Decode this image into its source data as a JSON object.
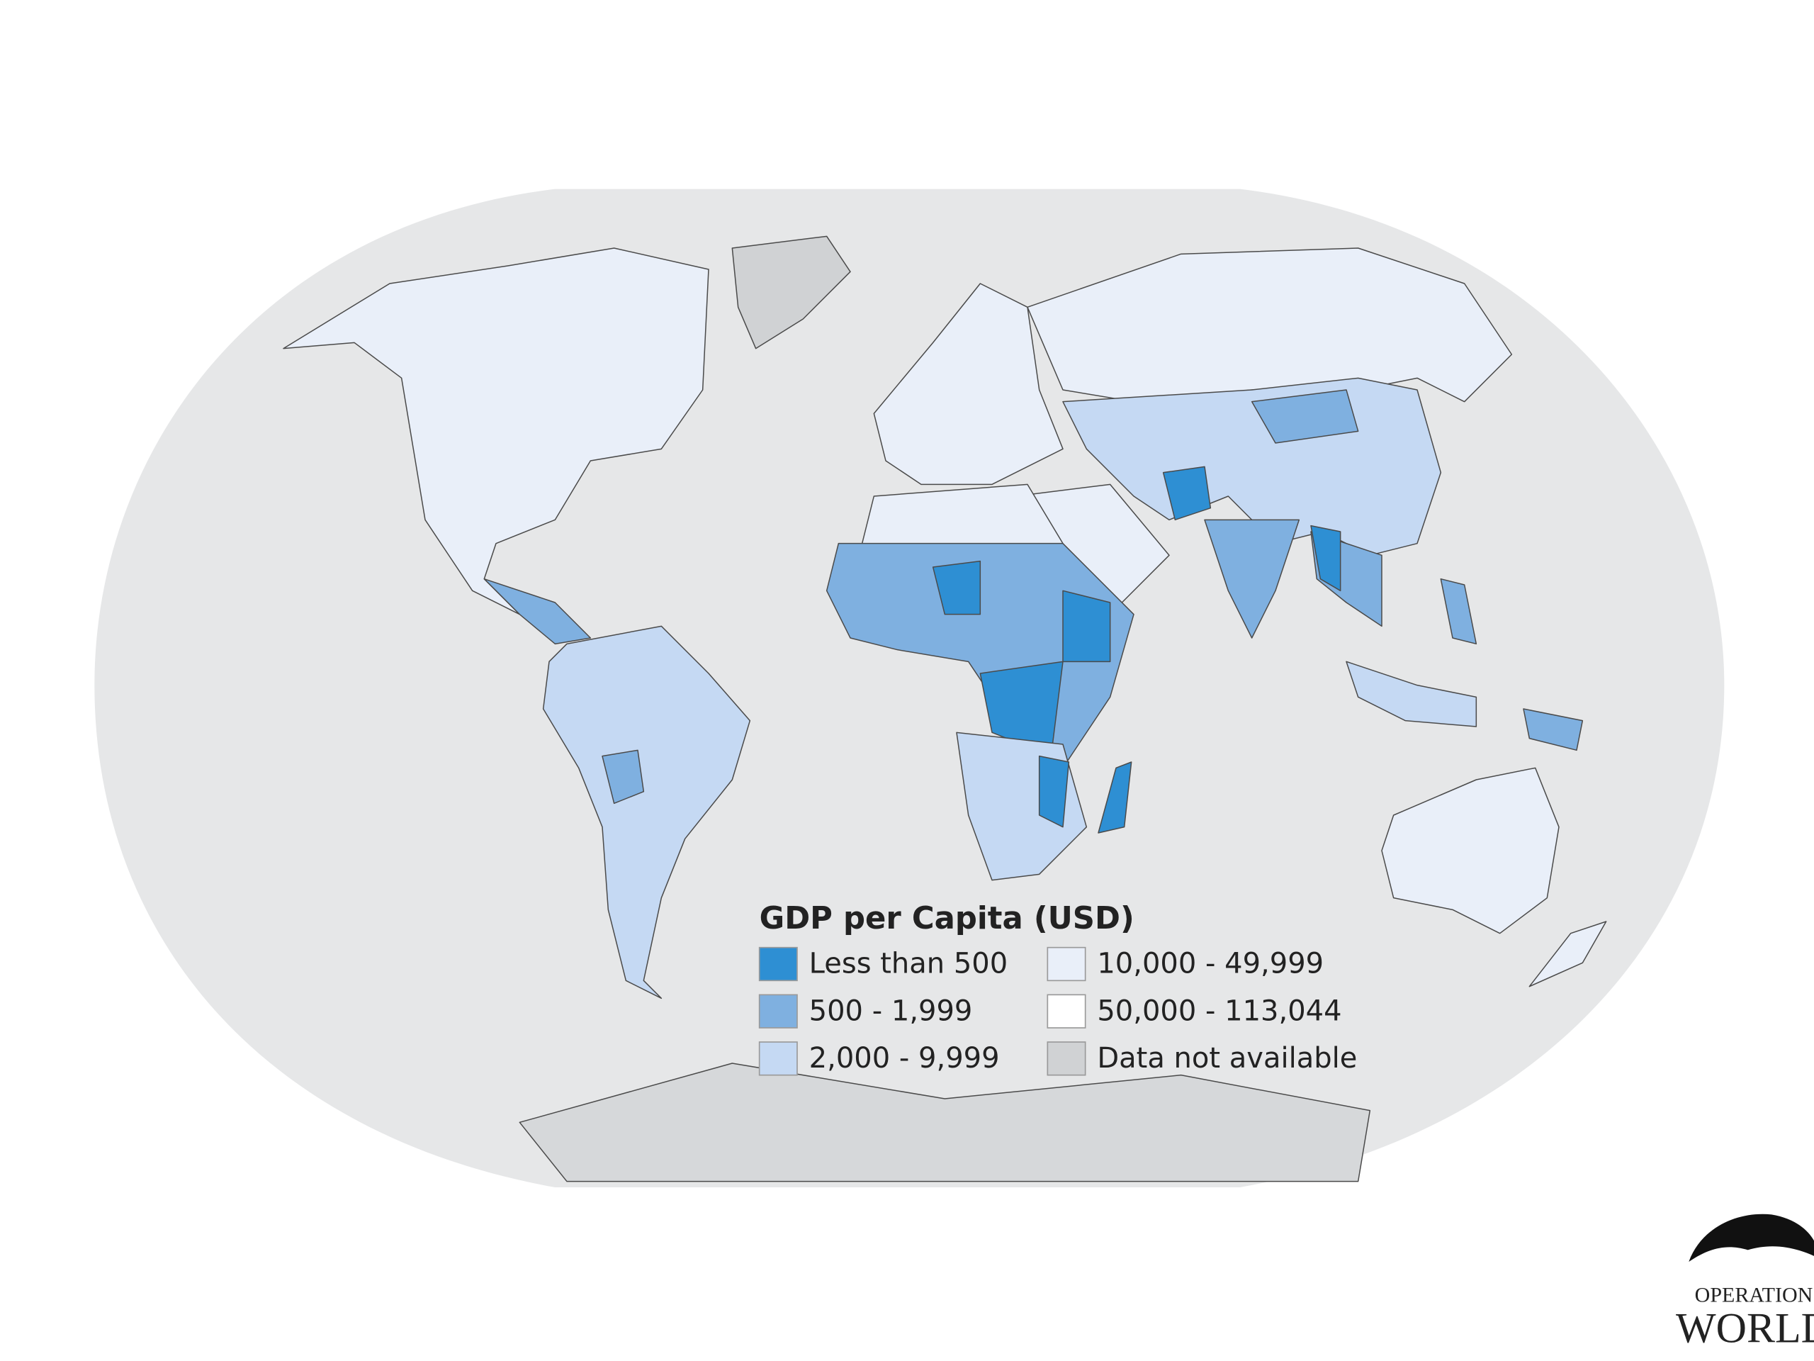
{
  "map": {
    "legend": {
      "title": "GDP per Capita (USD)",
      "items": [
        {
          "label": "Less than 500",
          "color": "#2e8fd3"
        },
        {
          "label": "500 - 1,999",
          "color": "#7fb0e0"
        },
        {
          "label": "2,000 - 9,999",
          "color": "#c5d9f3"
        },
        {
          "label": "10,000 - 49,999",
          "color": "#e9eff9"
        },
        {
          "label": "50,000 - 113,044",
          "color": "#ffffff"
        },
        {
          "label": "Data not available",
          "color": "#d0d2d4"
        }
      ]
    },
    "logo": {
      "line1": "OPERATION",
      "line2": "WORLD"
    }
  }
}
